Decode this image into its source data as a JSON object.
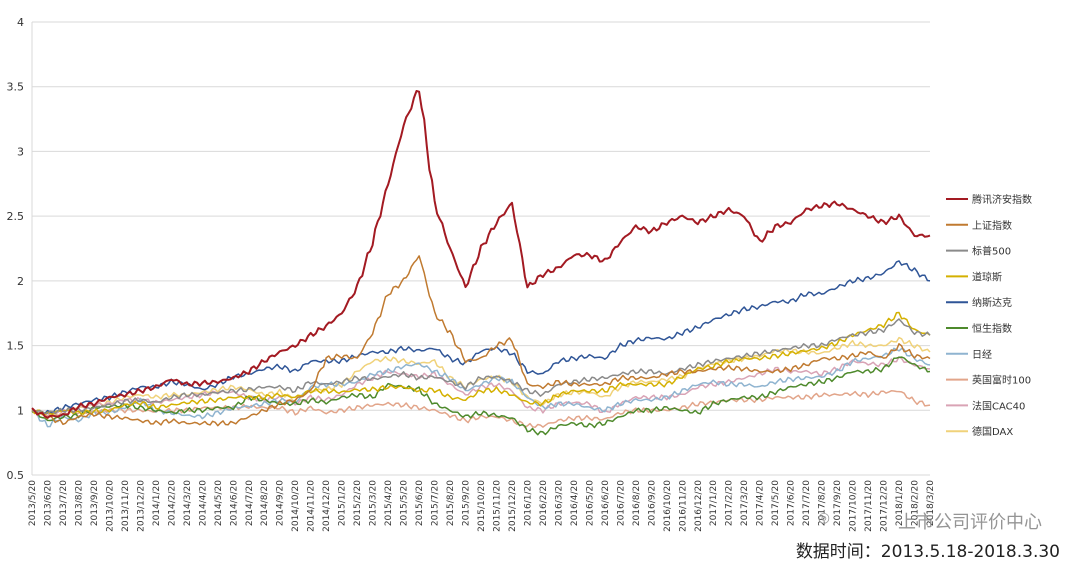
{
  "chart_data": {
    "type": "line",
    "title": "",
    "xlabel": "",
    "ylabel": "",
    "ylim": [
      0.5,
      4
    ],
    "yticks": [
      0.5,
      1,
      1.5,
      2,
      2.5,
      3,
      3.5,
      4
    ],
    "grid": "horizontal",
    "legend_position": "right",
    "x_labels": [
      "2013/5/20",
      "2013/6/20",
      "2013/7/20",
      "2013/8/20",
      "2013/9/20",
      "2013/10/20",
      "2013/11/20",
      "2013/12/20",
      "2014/1/20",
      "2014/2/20",
      "2014/3/20",
      "2014/4/20",
      "2014/5/20",
      "2014/6/20",
      "2014/7/20",
      "2014/8/20",
      "2014/9/20",
      "2014/10/20",
      "2014/11/20",
      "2014/12/20",
      "2015/1/20",
      "2015/2/20",
      "2015/3/20",
      "2015/4/20",
      "2015/5/20",
      "2015/6/20",
      "2015/7/20",
      "2015/8/20",
      "2015/9/20",
      "2015/10/20",
      "2015/11/20",
      "2015/12/20",
      "2016/1/20",
      "2016/2/20",
      "2016/3/20",
      "2016/4/20",
      "2016/5/20",
      "2016/6/20",
      "2016/7/20",
      "2016/8/20",
      "2016/9/20",
      "2016/10/20",
      "2016/11/20",
      "2016/12/20",
      "2017/1/20",
      "2017/2/20",
      "2017/3/20",
      "2017/4/20",
      "2017/5/20",
      "2017/6/20",
      "2017/7/20",
      "2017/8/20",
      "2017/9/20",
      "2017/10/20",
      "2017/11/20",
      "2017/12/20",
      "2018/1/20",
      "2018/2/20",
      "2018/3/20"
    ],
    "series": [
      {
        "name": "腾讯济安指数",
        "color": "#a31a22",
        "values": [
          1.0,
          0.95,
          0.96,
          1.03,
          1.05,
          1.1,
          1.12,
          1.15,
          1.18,
          1.24,
          1.2,
          1.21,
          1.22,
          1.25,
          1.3,
          1.38,
          1.45,
          1.5,
          1.58,
          1.65,
          1.75,
          1.95,
          2.3,
          2.75,
          3.2,
          3.5,
          2.6,
          2.25,
          1.95,
          2.25,
          2.45,
          2.6,
          1.95,
          2.05,
          2.1,
          2.2,
          2.2,
          2.15,
          2.3,
          2.42,
          2.38,
          2.45,
          2.5,
          2.45,
          2.5,
          2.55,
          2.5,
          2.3,
          2.42,
          2.45,
          2.55,
          2.58,
          2.6,
          2.55,
          2.5,
          2.45,
          2.5,
          2.35,
          2.35
        ]
      },
      {
        "name": "上证指数",
        "color": "#c07a30",
        "values": [
          1.0,
          0.95,
          0.9,
          0.95,
          0.97,
          0.95,
          0.94,
          0.92,
          0.9,
          0.92,
          0.9,
          0.9,
          0.9,
          0.9,
          0.95,
          1.0,
          1.05,
          1.08,
          1.15,
          1.4,
          1.42,
          1.4,
          1.6,
          1.9,
          2.0,
          2.2,
          1.75,
          1.6,
          1.38,
          1.4,
          1.5,
          1.55,
          1.2,
          1.18,
          1.22,
          1.2,
          1.2,
          1.2,
          1.25,
          1.25,
          1.25,
          1.28,
          1.3,
          1.3,
          1.32,
          1.33,
          1.32,
          1.3,
          1.3,
          1.32,
          1.35,
          1.4,
          1.4,
          1.42,
          1.45,
          1.4,
          1.5,
          1.42,
          1.4
        ]
      },
      {
        "name": "标普500",
        "color": "#8a8a8a",
        "values": [
          1.0,
          0.98,
          1.0,
          1.0,
          1.02,
          1.04,
          1.07,
          1.08,
          1.06,
          1.1,
          1.12,
          1.12,
          1.14,
          1.15,
          1.16,
          1.18,
          1.18,
          1.15,
          1.22,
          1.2,
          1.22,
          1.25,
          1.24,
          1.26,
          1.28,
          1.25,
          1.26,
          1.22,
          1.18,
          1.25,
          1.26,
          1.22,
          1.15,
          1.12,
          1.2,
          1.22,
          1.24,
          1.25,
          1.28,
          1.3,
          1.3,
          1.28,
          1.32,
          1.35,
          1.38,
          1.4,
          1.42,
          1.44,
          1.46,
          1.48,
          1.5,
          1.5,
          1.55,
          1.58,
          1.6,
          1.62,
          1.7,
          1.6,
          1.58
        ]
      },
      {
        "name": "道琼斯",
        "color": "#d4b000",
        "values": [
          1.0,
          0.97,
          1.0,
          0.98,
          0.99,
          1.0,
          1.04,
          1.06,
          1.02,
          1.04,
          1.06,
          1.07,
          1.08,
          1.1,
          1.1,
          1.1,
          1.12,
          1.1,
          1.15,
          1.15,
          1.14,
          1.16,
          1.16,
          1.18,
          1.18,
          1.15,
          1.16,
          1.1,
          1.08,
          1.15,
          1.16,
          1.12,
          1.06,
          1.05,
          1.12,
          1.15,
          1.15,
          1.15,
          1.2,
          1.2,
          1.2,
          1.2,
          1.26,
          1.32,
          1.34,
          1.38,
          1.4,
          1.4,
          1.42,
          1.44,
          1.46,
          1.48,
          1.52,
          1.58,
          1.62,
          1.66,
          1.75,
          1.62,
          1.58
        ]
      },
      {
        "name": "纳斯达克",
        "color": "#2f5597",
        "values": [
          1.0,
          0.98,
          1.02,
          1.05,
          1.08,
          1.1,
          1.14,
          1.18,
          1.18,
          1.22,
          1.2,
          1.16,
          1.2,
          1.26,
          1.28,
          1.32,
          1.34,
          1.3,
          1.38,
          1.38,
          1.38,
          1.42,
          1.45,
          1.45,
          1.48,
          1.46,
          1.48,
          1.4,
          1.36,
          1.46,
          1.48,
          1.44,
          1.3,
          1.28,
          1.38,
          1.4,
          1.42,
          1.4,
          1.5,
          1.54,
          1.56,
          1.55,
          1.6,
          1.64,
          1.7,
          1.74,
          1.78,
          1.8,
          1.84,
          1.84,
          1.9,
          1.9,
          1.95,
          2.0,
          2.02,
          2.06,
          2.15,
          2.08,
          2.0
        ]
      },
      {
        "name": "恒生指数",
        "color": "#4e8a2c",
        "values": [
          1.0,
          0.92,
          0.95,
          0.96,
          1.02,
          1.03,
          1.04,
          1.02,
          1.0,
          0.98,
          1.0,
          1.0,
          1.02,
          1.02,
          1.1,
          1.08,
          1.05,
          1.05,
          1.08,
          1.06,
          1.1,
          1.12,
          1.1,
          1.2,
          1.18,
          1.16,
          1.05,
          1.0,
          0.95,
          0.98,
          0.96,
          0.94,
          0.85,
          0.82,
          0.88,
          0.9,
          0.88,
          0.9,
          0.95,
          1.0,
          1.0,
          1.02,
          1.0,
          0.98,
          1.05,
          1.08,
          1.1,
          1.1,
          1.14,
          1.18,
          1.2,
          1.22,
          1.25,
          1.3,
          1.3,
          1.32,
          1.42,
          1.35,
          1.3
        ]
      },
      {
        "name": "日经",
        "color": "#8fb4d0",
        "values": [
          1.0,
          0.88,
          0.95,
          0.92,
          0.98,
          0.98,
          1.02,
          1.08,
          1.0,
          0.98,
          0.96,
          0.95,
          0.98,
          1.02,
          1.03,
          1.05,
          1.08,
          1.06,
          1.18,
          1.2,
          1.2,
          1.22,
          1.28,
          1.3,
          1.34,
          1.36,
          1.3,
          1.25,
          1.15,
          1.2,
          1.25,
          1.22,
          1.1,
          1.02,
          1.05,
          1.05,
          1.02,
          1.0,
          1.05,
          1.08,
          1.08,
          1.1,
          1.15,
          1.2,
          1.22,
          1.2,
          1.2,
          1.18,
          1.22,
          1.24,
          1.25,
          1.26,
          1.3,
          1.38,
          1.4,
          1.42,
          1.48,
          1.4,
          1.35
        ]
      },
      {
        "name": "英国富时100",
        "color": "#e2a58a",
        "values": [
          1.0,
          0.96,
          0.98,
          0.98,
          0.99,
          1.0,
          1.0,
          1.0,
          0.99,
          1.0,
          1.0,
          1.02,
          1.02,
          1.02,
          1.03,
          1.02,
          1.02,
          0.98,
          1.02,
          0.98,
          1.0,
          1.02,
          1.04,
          1.05,
          1.04,
          1.02,
          1.0,
          0.96,
          0.92,
          0.95,
          0.95,
          0.92,
          0.88,
          0.88,
          0.92,
          0.94,
          0.94,
          0.93,
          0.98,
          1.0,
          1.0,
          1.0,
          1.02,
          1.05,
          1.06,
          1.08,
          1.08,
          1.08,
          1.1,
          1.1,
          1.1,
          1.12,
          1.12,
          1.13,
          1.12,
          1.14,
          1.15,
          1.07,
          1.04
        ]
      },
      {
        "name": "法国CAC40",
        "color": "#d9a3b5",
        "values": [
          1.0,
          0.96,
          1.0,
          1.02,
          1.04,
          1.05,
          1.08,
          1.08,
          1.06,
          1.08,
          1.1,
          1.12,
          1.14,
          1.14,
          1.1,
          1.08,
          1.1,
          1.05,
          1.1,
          1.08,
          1.12,
          1.2,
          1.25,
          1.3,
          1.28,
          1.26,
          1.28,
          1.2,
          1.12,
          1.18,
          1.2,
          1.15,
          1.02,
          1.0,
          1.05,
          1.06,
          1.05,
          0.98,
          1.05,
          1.1,
          1.1,
          1.1,
          1.12,
          1.18,
          1.2,
          1.22,
          1.25,
          1.28,
          1.32,
          1.3,
          1.3,
          1.28,
          1.32,
          1.38,
          1.36,
          1.35,
          1.4,
          1.35,
          1.32
        ]
      },
      {
        "name": "德国DAX",
        "color": "#f0d27a",
        "values": [
          1.0,
          0.96,
          1.0,
          1.02,
          1.04,
          1.06,
          1.1,
          1.12,
          1.1,
          1.12,
          1.12,
          1.14,
          1.16,
          1.18,
          1.16,
          1.12,
          1.14,
          1.08,
          1.15,
          1.16,
          1.2,
          1.3,
          1.38,
          1.4,
          1.38,
          1.36,
          1.38,
          1.25,
          1.18,
          1.24,
          1.26,
          1.22,
          1.1,
          1.05,
          1.12,
          1.14,
          1.14,
          1.1,
          1.18,
          1.22,
          1.22,
          1.24,
          1.26,
          1.32,
          1.36,
          1.38,
          1.4,
          1.42,
          1.46,
          1.46,
          1.45,
          1.44,
          1.48,
          1.52,
          1.5,
          1.5,
          1.55,
          1.5,
          1.45
        ]
      }
    ]
  },
  "footer": {
    "date_range": "数据时间：2013.5.18-2018.3.30"
  },
  "watermark": {
    "text": "上市公司评价中心"
  }
}
